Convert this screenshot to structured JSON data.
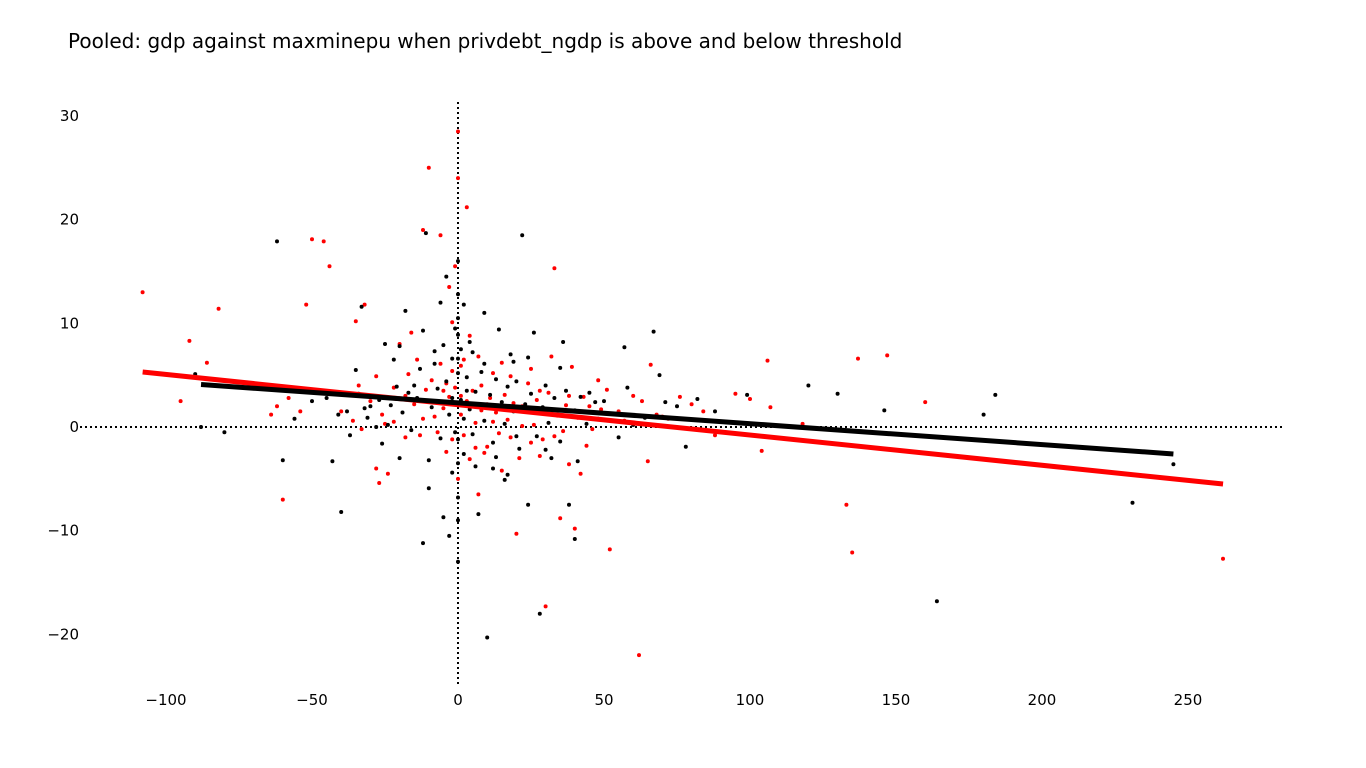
{
  "chart_data": {
    "type": "scatter",
    "title": "Pooled: gdp against maxminepu when privdebt_ngdp is above and below threshold",
    "xlabel": "",
    "ylabel": "",
    "xlim": [
      -115,
      285
    ],
    "ylim": [
      -25,
      31.5
    ],
    "x_ticks": [
      -100,
      -50,
      0,
      50,
      100,
      150,
      200,
      250
    ],
    "y_ticks": [
      -20,
      -10,
      0,
      10,
      20,
      30
    ],
    "x_tick_labels": [
      "−100",
      "−50",
      "0",
      "50",
      "100",
      "150",
      "200",
      "250"
    ],
    "y_tick_labels": [
      "−20",
      "−10",
      "0",
      "10",
      "20",
      "30"
    ],
    "zero_lines": "dotted",
    "grid": false,
    "legend": "none",
    "series": [
      {
        "color": "#ff0000",
        "points": [
          [
            -108,
            13
          ],
          [
            -95,
            2.5
          ],
          [
            -92,
            8.3
          ],
          [
            -86,
            6.2
          ],
          [
            -82,
            11.4
          ],
          [
            -64,
            1.2
          ],
          [
            -62,
            2
          ],
          [
            -60,
            -7
          ],
          [
            -58,
            2.8
          ],
          [
            -54,
            1.5
          ],
          [
            -52,
            11.8
          ],
          [
            -50,
            18.1
          ],
          [
            -46,
            17.9
          ],
          [
            -44,
            15.5
          ],
          [
            -40,
            1.5
          ],
          [
            -35,
            10.2
          ],
          [
            -34,
            4
          ],
          [
            -32,
            11.8
          ],
          [
            -28,
            -4
          ],
          [
            -27,
            -5.4
          ],
          [
            -24,
            -4.5
          ],
          [
            -22,
            0.5
          ],
          [
            -20,
            8
          ],
          [
            -18,
            3
          ],
          [
            -16,
            9.1
          ],
          [
            -14,
            6.5
          ],
          [
            -12,
            19
          ],
          [
            -10,
            25
          ],
          [
            -8,
            1
          ],
          [
            -6,
            18.5
          ],
          [
            -5,
            3.5
          ],
          [
            -4,
            4.2
          ],
          [
            -3,
            13.5
          ],
          [
            -2,
            10.1
          ],
          [
            -1,
            15.5
          ],
          [
            0,
            28.5
          ],
          [
            0,
            24
          ],
          [
            0,
            -5
          ],
          [
            1,
            3
          ],
          [
            2,
            6.5
          ],
          [
            3,
            21.2
          ],
          [
            4,
            8.8
          ],
          [
            6,
            -2
          ],
          [
            7,
            -6.5
          ],
          [
            8,
            4
          ],
          [
            10,
            2.2
          ],
          [
            12,
            0.5
          ],
          [
            15,
            6.2
          ],
          [
            18,
            -1
          ],
          [
            20,
            -10.3
          ],
          [
            22,
            2
          ],
          [
            25,
            -1.5
          ],
          [
            28,
            3.5
          ],
          [
            30,
            -17.3
          ],
          [
            32,
            6.8
          ],
          [
            33,
            15.3
          ],
          [
            35,
            -8.8
          ],
          [
            38,
            3
          ],
          [
            40,
            -9.8
          ],
          [
            42,
            -4.5
          ],
          [
            45,
            2
          ],
          [
            48,
            4.5
          ],
          [
            52,
            -11.8
          ],
          [
            55,
            1.5
          ],
          [
            60,
            3
          ],
          [
            62,
            -22
          ],
          [
            65,
            -3.3
          ],
          [
            66,
            6
          ],
          [
            70,
            1
          ],
          [
            80,
            2.2
          ],
          [
            84,
            1.5
          ],
          [
            88,
            -0.8
          ],
          [
            95,
            3.2
          ],
          [
            100,
            2.7
          ],
          [
            104,
            -2.3
          ],
          [
            106,
            6.4
          ],
          [
            107,
            1.9
          ],
          [
            118,
            0.3
          ],
          [
            133,
            -7.5
          ],
          [
            135,
            -12.1
          ],
          [
            137,
            6.6
          ],
          [
            147,
            6.9
          ],
          [
            160,
            2.4
          ],
          [
            262,
            -12.7
          ],
          [
            -30,
            2.5
          ],
          [
            -26,
            1.2
          ],
          [
            -22,
            3.8
          ],
          [
            -18,
            -1
          ],
          [
            -15,
            2.2
          ],
          [
            -12,
            0.8
          ],
          [
            -9,
            4.5
          ],
          [
            -7,
            -0.5
          ],
          [
            -5,
            1.8
          ],
          [
            -3,
            2.9
          ],
          [
            -2,
            -1.2
          ],
          [
            -1,
            3.8
          ],
          [
            1,
            1.2
          ],
          [
            2,
            -0.8
          ],
          [
            3,
            2.5
          ],
          [
            5,
            3.5
          ],
          [
            6,
            0.4
          ],
          [
            8,
            1.6
          ],
          [
            9,
            -2.5
          ],
          [
            11,
            2.8
          ],
          [
            13,
            1.4
          ],
          [
            14,
            -0.6
          ],
          [
            16,
            3.1
          ],
          [
            17,
            0.7
          ],
          [
            19,
            2.3
          ],
          [
            21,
            -3
          ],
          [
            23,
            1.8
          ],
          [
            24,
            4.2
          ],
          [
            26,
            0.2
          ],
          [
            27,
            2.6
          ],
          [
            29,
            -1.2
          ],
          [
            31,
            3.3
          ],
          [
            34,
            1.1
          ],
          [
            36,
            -0.4
          ],
          [
            37,
            2.1
          ],
          [
            39,
            5.8
          ],
          [
            41,
            0.9
          ],
          [
            43,
            2.9
          ],
          [
            46,
            -0.2
          ],
          [
            49,
            1.7
          ],
          [
            51,
            3.6
          ],
          [
            57,
            0.6
          ],
          [
            63,
            2.5
          ],
          [
            68,
            1.2
          ],
          [
            72,
            0.8
          ],
          [
            76,
            2.9
          ],
          [
            -36,
            0.6
          ],
          [
            -33,
            -0.2
          ],
          [
            -28,
            4.9
          ],
          [
            -25,
            0.3
          ],
          [
            -21,
            2.7
          ],
          [
            -17,
            5.1
          ],
          [
            -13,
            -0.8
          ],
          [
            -11,
            3.6
          ],
          [
            -6,
            6.1
          ],
          [
            -4,
            -2.4
          ],
          [
            -2,
            5.4
          ],
          [
            1,
            5.9
          ],
          [
            4,
            -3.1
          ],
          [
            7,
            6.8
          ],
          [
            10,
            -1.9
          ],
          [
            12,
            5.2
          ],
          [
            15,
            -4.2
          ],
          [
            18,
            4.9
          ],
          [
            22,
            0.1
          ],
          [
            25,
            5.6
          ],
          [
            28,
            -2.8
          ],
          [
            33,
            -0.9
          ],
          [
            38,
            -3.6
          ],
          [
            44,
            -1.8
          ]
        ]
      },
      {
        "color": "#000000",
        "points": [
          [
            -90,
            5.1
          ],
          [
            -88,
            0
          ],
          [
            -80,
            -0.5
          ],
          [
            -62,
            17.9
          ],
          [
            -60,
            -3.2
          ],
          [
            -56,
            0.8
          ],
          [
            -50,
            2.5
          ],
          [
            -45,
            2.8
          ],
          [
            -43,
            -3.3
          ],
          [
            -40,
            -8.2
          ],
          [
            -38,
            1.5
          ],
          [
            -35,
            5.5
          ],
          [
            -33,
            11.6
          ],
          [
            -30,
            2
          ],
          [
            -28,
            0
          ],
          [
            -25,
            8
          ],
          [
            -22,
            6.5
          ],
          [
            -20,
            -3
          ],
          [
            -18,
            11.2
          ],
          [
            -15,
            4
          ],
          [
            -12,
            -11.2
          ],
          [
            -11,
            18.7
          ],
          [
            -10,
            -5.9
          ],
          [
            -8,
            7.3
          ],
          [
            -6,
            12
          ],
          [
            -5,
            -8.7
          ],
          [
            -4,
            14.5
          ],
          [
            -3,
            -10.5
          ],
          [
            -2,
            6.6
          ],
          [
            -1,
            9.5
          ],
          [
            0,
            16
          ],
          [
            0,
            -13
          ],
          [
            0,
            -9
          ],
          [
            1,
            7.5
          ],
          [
            2,
            11.8
          ],
          [
            3,
            3.5
          ],
          [
            5,
            7.2
          ],
          [
            7,
            -8.4
          ],
          [
            9,
            11
          ],
          [
            10,
            -20.3
          ],
          [
            12,
            -4
          ],
          [
            14,
            9.4
          ],
          [
            16,
            -5.1
          ],
          [
            18,
            7
          ],
          [
            20,
            -0.9
          ],
          [
            22,
            18.5
          ],
          [
            24,
            -7.5
          ],
          [
            26,
            9.1
          ],
          [
            28,
            -18
          ],
          [
            30,
            4
          ],
          [
            32,
            -3
          ],
          [
            36,
            8.2
          ],
          [
            38,
            -7.5
          ],
          [
            40,
            -10.8
          ],
          [
            42,
            2.9
          ],
          [
            45,
            3.3
          ],
          [
            48,
            0.8
          ],
          [
            50,
            2.5
          ],
          [
            55,
            -1
          ],
          [
            57,
            7.7
          ],
          [
            60,
            0.2
          ],
          [
            67,
            9.2
          ],
          [
            69,
            5
          ],
          [
            75,
            2
          ],
          [
            78,
            -1.9
          ],
          [
            82,
            2.7
          ],
          [
            88,
            1.5
          ],
          [
            99,
            3.1
          ],
          [
            120,
            4
          ],
          [
            130,
            3.2
          ],
          [
            146,
            1.6
          ],
          [
            180,
            1.2
          ],
          [
            184,
            3.1
          ],
          [
            231,
            -7.3
          ],
          [
            245,
            -3.6
          ],
          [
            164,
            -16.8
          ],
          [
            -34,
            3.2
          ],
          [
            -31,
            0.9
          ],
          [
            -27,
            2.6
          ],
          [
            -24,
            0.2
          ],
          [
            -21,
            3.9
          ],
          [
            -19,
            1.4
          ],
          [
            -16,
            -0.3
          ],
          [
            -14,
            2.8
          ],
          [
            -13,
            5.6
          ],
          [
            -9,
            1.9
          ],
          [
            -7,
            3.7
          ],
          [
            -6,
            -1.1
          ],
          [
            -4,
            4.4
          ],
          [
            -3,
            1.2
          ],
          [
            -2,
            2.8
          ],
          [
            -1,
            -0.5
          ],
          [
            1,
            2.6
          ],
          [
            2,
            0.8
          ],
          [
            3,
            4.8
          ],
          [
            4,
            1.7
          ],
          [
            5,
            -0.7
          ],
          [
            6,
            3.4
          ],
          [
            7,
            2.1
          ],
          [
            8,
            5.3
          ],
          [
            9,
            0.6
          ],
          [
            11,
            3.1
          ],
          [
            12,
            -1.5
          ],
          [
            13,
            4.6
          ],
          [
            15,
            2.4
          ],
          [
            16,
            0.3
          ],
          [
            17,
            3.9
          ],
          [
            19,
            1.5
          ],
          [
            20,
            4.4
          ],
          [
            21,
            -2.1
          ],
          [
            23,
            2.2
          ],
          [
            25,
            3.2
          ],
          [
            27,
            -0.9
          ],
          [
            29,
            1.9
          ],
          [
            31,
            0.4
          ],
          [
            33,
            2.8
          ],
          [
            35,
            -1.4
          ],
          [
            37,
            3.5
          ],
          [
            40,
            1.6
          ],
          [
            44,
            0.3
          ],
          [
            47,
            2.4
          ],
          [
            53,
            1.3
          ],
          [
            58,
            3.8
          ],
          [
            64,
            0.9
          ],
          [
            71,
            2.4
          ],
          [
            -41,
            1.2
          ],
          [
            -37,
            -0.8
          ],
          [
            -32,
            1.8
          ],
          [
            -26,
            -1.6
          ],
          [
            -23,
            2.1
          ],
          [
            -17,
            3.3
          ],
          [
            -10,
            -3.2
          ],
          [
            -8,
            6.1
          ],
          [
            -5,
            7.9
          ],
          [
            -2,
            -4.4
          ],
          [
            0,
            8.9
          ],
          [
            0,
            -6.8
          ],
          [
            0,
            5.2
          ],
          [
            0,
            -3.5
          ],
          [
            0,
            12.8
          ],
          [
            0,
            -1.2
          ],
          [
            0,
            2.2
          ],
          [
            0,
            6.6
          ],
          [
            0,
            10.5
          ],
          [
            2,
            -2.6
          ],
          [
            4,
            8.2
          ],
          [
            6,
            -3.8
          ],
          [
            9,
            6.1
          ],
          [
            13,
            -2.9
          ],
          [
            17,
            -4.6
          ],
          [
            19,
            6.3
          ],
          [
            24,
            6.7
          ],
          [
            30,
            -2.2
          ],
          [
            35,
            5.7
          ],
          [
            41,
            -3.3
          ],
          [
            -20,
            7.8
          ],
          [
            -12,
            9.3
          ]
        ]
      }
    ],
    "fit_lines": [
      {
        "color": "#ff0000",
        "x": [
          -108,
          262
        ],
        "y": [
          5.3,
          -5.5
        ]
      },
      {
        "color": "#000000",
        "x": [
          -88,
          245
        ],
        "y": [
          4.1,
          -2.6
        ]
      }
    ]
  }
}
